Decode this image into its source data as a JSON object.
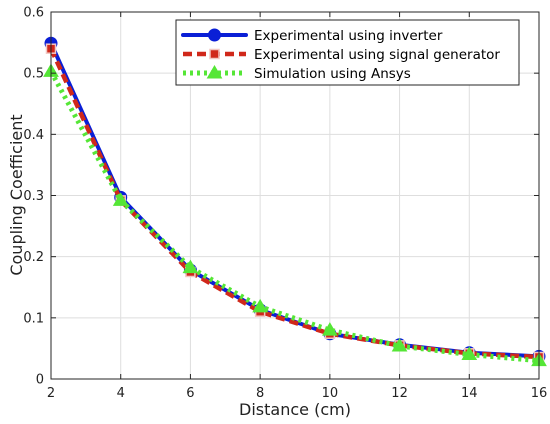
{
  "chart_data": {
    "type": "line",
    "title": "",
    "xlabel": "Distance (cm)",
    "ylabel": "Coupling Coefficient",
    "xlim": [
      2,
      16
    ],
    "ylim": [
      0,
      0.6
    ],
    "xticks": [
      2,
      4,
      6,
      8,
      10,
      12,
      14,
      16
    ],
    "yticks": [
      0,
      0.1,
      0.2,
      0.3,
      0.4,
      0.5,
      0.6
    ],
    "ytick_labels": [
      "0",
      "0.1",
      "0.2",
      "0.3",
      "0.4",
      "0.5",
      "0.6"
    ],
    "grid": true,
    "legend_position": "top-right",
    "series": [
      {
        "name": "Experimental using inverter",
        "x": [
          2,
          4,
          6,
          8,
          10,
          12,
          14,
          16
        ],
        "values": [
          0.549,
          0.297,
          0.178,
          0.113,
          0.074,
          0.056,
          0.043,
          0.037
        ],
        "color": "#0a1fd6",
        "marker": "circle",
        "line_style": "solid"
      },
      {
        "name": "Experimental using signal generator",
        "x": [
          2,
          4,
          6,
          8,
          10,
          12,
          14,
          16
        ],
        "values": [
          0.54,
          0.292,
          0.175,
          0.11,
          0.074,
          0.055,
          0.042,
          0.036
        ],
        "color": "#d0281a",
        "marker": "square",
        "line_style": "dashed"
      },
      {
        "name": "Simulation using Ansys",
        "x": [
          2,
          4,
          6,
          8,
          10,
          12,
          14,
          16
        ],
        "values": [
          0.503,
          0.292,
          0.182,
          0.118,
          0.08,
          0.054,
          0.04,
          0.03
        ],
        "color": "#55e636",
        "marker": "triangle",
        "line_style": "dotted"
      }
    ]
  }
}
